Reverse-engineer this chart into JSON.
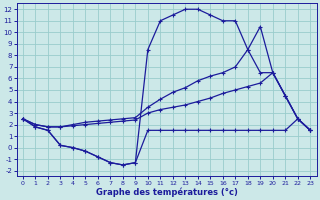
{
  "xlabel": "Graphe des températures (°c)",
  "bg_color": "#cce8e8",
  "line_color": "#1c1c9c",
  "grid_color": "#99cccc",
  "xlim": [
    -0.5,
    23.5
  ],
  "ylim": [
    -2.5,
    12.5
  ],
  "xticks": [
    0,
    1,
    2,
    3,
    4,
    5,
    6,
    7,
    8,
    9,
    10,
    11,
    12,
    13,
    14,
    15,
    16,
    17,
    18,
    19,
    20,
    21,
    22,
    23
  ],
  "yticks": [
    -2,
    -1,
    0,
    1,
    2,
    3,
    4,
    5,
    6,
    7,
    8,
    9,
    10,
    11,
    12
  ],
  "line1_x": [
    0,
    1,
    2,
    3,
    4,
    5,
    6,
    7,
    8,
    9,
    10,
    11,
    12,
    13,
    14,
    15,
    16,
    17,
    18,
    19,
    20,
    21,
    22,
    23
  ],
  "line1_y": [
    2.5,
    1.8,
    1.5,
    0.2,
    0.0,
    -0.3,
    -0.8,
    -1.3,
    -1.5,
    -1.3,
    8.5,
    11.0,
    11.5,
    12.0,
    12.0,
    11.5,
    11.0,
    11.0,
    8.5,
    10.5,
    6.5,
    4.5,
    2.5,
    1.5
  ],
  "line2_x": [
    0,
    1,
    2,
    3,
    4,
    5,
    6,
    7,
    8,
    9,
    10,
    11,
    12,
    13,
    14,
    15,
    16,
    17,
    18,
    19,
    20,
    21,
    22,
    23
  ],
  "line2_y": [
    2.5,
    2.0,
    1.8,
    1.8,
    2.0,
    2.2,
    2.3,
    2.4,
    2.5,
    2.6,
    3.5,
    4.2,
    4.8,
    5.2,
    5.8,
    6.2,
    6.5,
    7.0,
    8.5,
    6.5,
    6.5,
    4.5,
    2.5,
    1.5
  ],
  "line3_x": [
    0,
    1,
    2,
    3,
    4,
    5,
    6,
    7,
    8,
    9,
    10,
    11,
    12,
    13,
    14,
    15,
    16,
    17,
    18,
    19,
    20,
    21,
    22,
    23
  ],
  "line3_y": [
    2.5,
    2.0,
    1.8,
    1.8,
    1.9,
    2.0,
    2.1,
    2.2,
    2.3,
    2.4,
    3.0,
    3.3,
    3.5,
    3.7,
    4.0,
    4.3,
    4.7,
    5.0,
    5.3,
    5.6,
    6.5,
    4.5,
    2.5,
    1.5
  ],
  "line4_x": [
    0,
    1,
    2,
    3,
    4,
    5,
    6,
    7,
    8,
    9,
    10,
    11,
    12,
    13,
    14,
    15,
    16,
    17,
    18,
    19,
    20,
    21,
    22,
    23
  ],
  "line4_y": [
    2.5,
    1.8,
    1.5,
    0.2,
    0.0,
    -0.3,
    -0.8,
    -1.3,
    -1.5,
    -1.3,
    1.5,
    1.5,
    1.5,
    1.5,
    1.5,
    1.5,
    1.5,
    1.5,
    1.5,
    1.5,
    1.5,
    1.5,
    2.5,
    1.5
  ]
}
